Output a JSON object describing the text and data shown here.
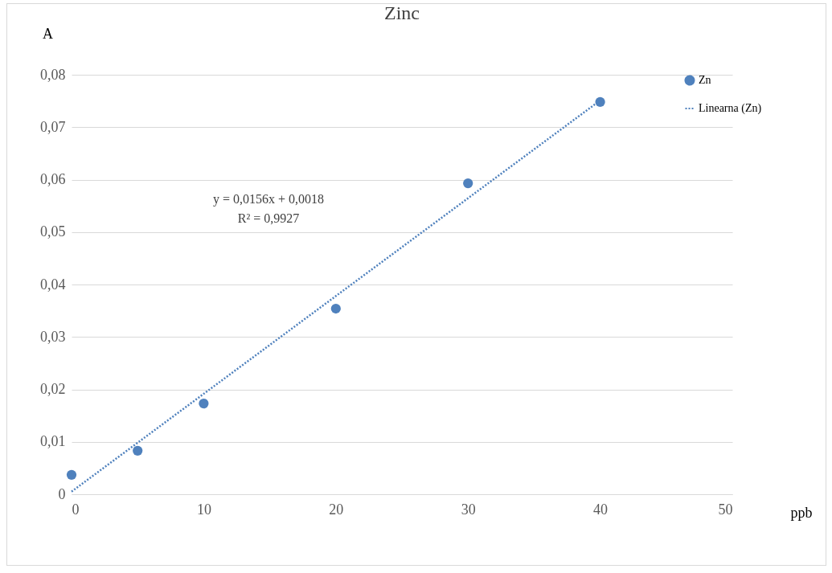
{
  "chart_data": {
    "type": "scatter",
    "title": "Zinc",
    "xlabel": "ppb",
    "ylabel": "A",
    "x": [
      0,
      5,
      10,
      20,
      30,
      40
    ],
    "series": [
      {
        "name": "Zn",
        "marker": "circle",
        "color": "#4f81bd",
        "values": [
          0.0037,
          0.0083,
          0.0173,
          0.0354,
          0.0593,
          0.0748
        ]
      },
      {
        "name": "Linearna (Zn)",
        "type": "line",
        "line_style": "dotted",
        "color": "#4f81bd",
        "x": [
          0,
          40
        ],
        "values": [
          0.0005,
          0.0751
        ]
      }
    ],
    "xlim": [
      0,
      50
    ],
    "xticks": [
      0,
      10,
      20,
      30,
      40,
      50
    ],
    "ylim": [
      0,
      0.08
    ],
    "yticks": [
      0,
      {
        "value": 0.01,
        "label": "0,01"
      },
      {
        "value": 0.02,
        "label": "0,02"
      },
      {
        "value": 0.03,
        "label": "0,03"
      },
      {
        "value": 0.04,
        "label": "0,04"
      },
      {
        "value": 0.05,
        "label": "0,05"
      },
      {
        "value": 0.06,
        "label": "0,06"
      },
      {
        "value": 0.07,
        "label": "0,07"
      },
      {
        "value": 0.08,
        "label": "0,08"
      }
    ],
    "grid": "y",
    "legend": "right",
    "annotations": [
      "y = 0,0156x + 0,0018",
      "R² = 0,9927"
    ]
  }
}
